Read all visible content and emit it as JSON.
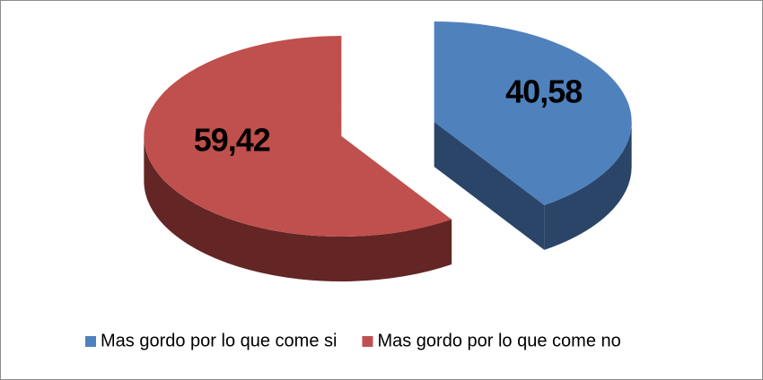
{
  "chart_data": {
    "type": "pie",
    "categories": [
      "Mas gordo por lo que come si",
      "Mas gordo por lo que come no"
    ],
    "values": [
      40.58,
      59.42
    ],
    "value_labels": [
      "40,58",
      "59,42"
    ],
    "colors": [
      "#4f81bd",
      "#c0504d"
    ],
    "side_colors": [
      "#2b4569",
      "#632624"
    ],
    "legend": "bottom"
  }
}
